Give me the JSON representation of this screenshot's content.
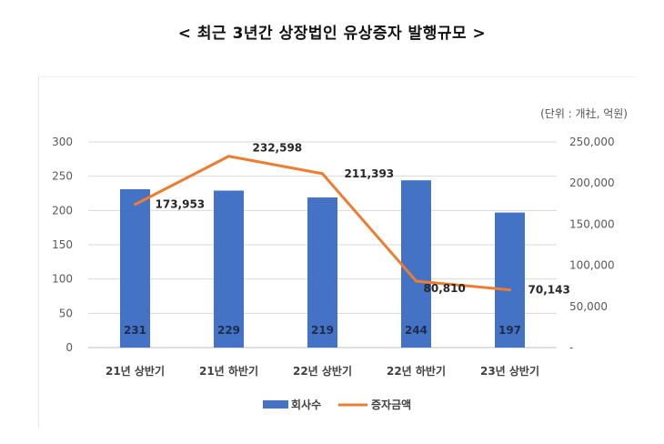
{
  "chart_data": {
    "title": "< 최근 3년간 상장법인 유상증자 발행규모 >",
    "unit_note": "(단위 : 개社, 억원)",
    "type": "bar+line",
    "categories": [
      "21년 상반기",
      "21년 하반기",
      "22년 상반기",
      "22년 하반기",
      "23년 상반기"
    ],
    "series": [
      {
        "name": "회사수",
        "type": "bar",
        "axis": "left",
        "color": "#4472C4",
        "values": [
          231,
          229,
          219,
          244,
          197
        ],
        "value_labels": [
          "231",
          "229",
          "219",
          "244",
          "197"
        ]
      },
      {
        "name": "증자금액",
        "type": "line",
        "axis": "right",
        "color": "#ED7D31",
        "values": [
          173953,
          232598,
          211393,
          80810,
          70143
        ],
        "value_labels": [
          "173,953",
          "232,598",
          "211,393",
          "80,810",
          "70,143"
        ]
      }
    ],
    "y_left": {
      "min": 0,
      "max": 300,
      "ticks": [
        "0",
        "50",
        "100",
        "150",
        "200",
        "250",
        "300"
      ]
    },
    "y_right": {
      "min": 0,
      "max": 250000,
      "ticks": [
        "-",
        "50,000",
        "100,000",
        "150,000",
        "200,000",
        "250,000"
      ]
    },
    "grid": true,
    "legend_position": "bottom"
  }
}
